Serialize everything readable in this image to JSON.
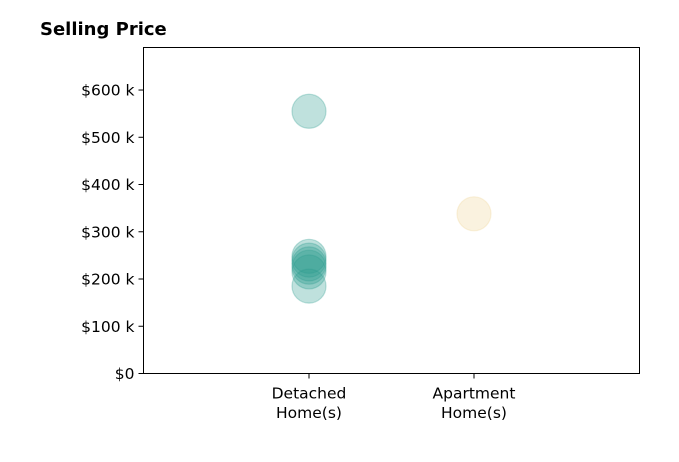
{
  "chart_data": {
    "type": "scatter",
    "title": "Selling Price",
    "xlabel": "",
    "ylabel": "",
    "categories": [
      [
        "Detached",
        "Home(s)"
      ],
      [
        "Apartment",
        "Home(s)"
      ]
    ],
    "ylim": [
      0,
      690000
    ],
    "yticks": [
      {
        "value": 0,
        "label": "$0"
      },
      {
        "value": 100000,
        "label": "$100 k"
      },
      {
        "value": 200000,
        "label": "$200 k"
      },
      {
        "value": 300000,
        "label": "$300 k"
      },
      {
        "value": 400000,
        "label": "$400 k"
      },
      {
        "value": 500000,
        "label": "$500 k"
      },
      {
        "value": 600000,
        "label": "$600 k"
      }
    ],
    "grid": false,
    "legend": "none",
    "series": [
      {
        "category": 0,
        "color": "#2a9d8f",
        "values": [
          555000,
          248000,
          240000,
          232000,
          225000,
          215000,
          185000
        ]
      },
      {
        "category": 1,
        "color": "#f0d595",
        "values": [
          338000
        ]
      }
    ]
  }
}
